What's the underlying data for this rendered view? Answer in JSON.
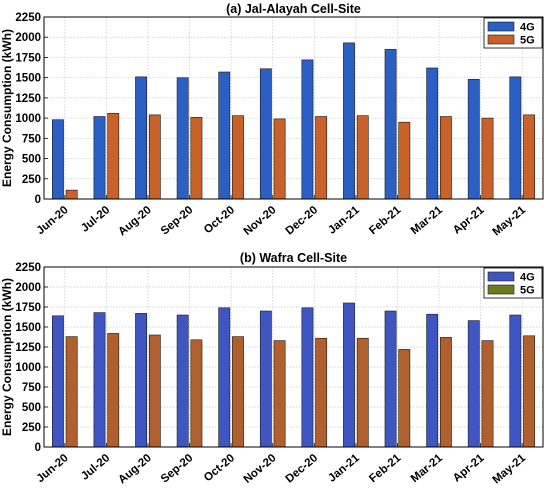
{
  "colors": {
    "panel_a_4g": "#2b5fc4",
    "panel_a_5g": "#c8612a",
    "panel_b_4g": "#3f56c2",
    "panel_b_5g": "#b0602e",
    "legend_b_5g": "#6f7a1e",
    "grid": "#c8c8c8",
    "axis": "#000000"
  },
  "y_label": "Energy Consumption (kWh)",
  "chart_data": [
    {
      "type": "bar",
      "title": "(a) Jal-Alayah Cell-Site",
      "xlabel": "",
      "ylabel": "Energy Consumption (kWh)",
      "ylim": [
        0,
        2250
      ],
      "yticks": [
        0,
        250,
        500,
        750,
        1000,
        1250,
        1500,
        1750,
        2000,
        2250
      ],
      "grid": true,
      "legend_position": "top-right",
      "categories": [
        "Jun-20",
        "Jul-20",
        "Aug-20",
        "Sep-20",
        "Oct-20",
        "Nov-20",
        "Dec-20",
        "Jan-21",
        "Feb-21",
        "Mar-21",
        "Apr-21",
        "May-21"
      ],
      "series": [
        {
          "name": "4G",
          "color": "#2b5fc4",
          "values": [
            980,
            1020,
            1510,
            1500,
            1570,
            1610,
            1720,
            1930,
            1850,
            1620,
            1480,
            1510
          ]
        },
        {
          "name": "5G",
          "color": "#c8612a",
          "values": [
            110,
            1060,
            1040,
            1010,
            1030,
            990,
            1020,
            1030,
            950,
            1020,
            1000,
            1040
          ]
        }
      ]
    },
    {
      "type": "bar",
      "title": "(b) Wafra Cell-Site",
      "xlabel": "",
      "ylabel": "Energy Consumption (kWh)",
      "ylim": [
        0,
        2250
      ],
      "yticks": [
        0,
        250,
        500,
        750,
        1000,
        1250,
        1500,
        1750,
        2000,
        2250
      ],
      "grid": true,
      "legend_position": "top-right",
      "categories": [
        "Jun-20",
        "Jul-20",
        "Aug-20",
        "Sep-20",
        "Oct-20",
        "Nov-20",
        "Dec-20",
        "Jan-21",
        "Feb-21",
        "Mar-21",
        "Apr-21",
        "May-21"
      ],
      "series": [
        {
          "name": "4G",
          "color": "#3f56c2",
          "values": [
            1640,
            1680,
            1670,
            1650,
            1740,
            1700,
            1740,
            1800,
            1700,
            1660,
            1580,
            1650
          ]
        },
        {
          "name": "5G",
          "color": "#b0602e",
          "values": [
            1380,
            1420,
            1400,
            1340,
            1380,
            1330,
            1360,
            1360,
            1220,
            1370,
            1330,
            1390
          ]
        }
      ]
    }
  ]
}
